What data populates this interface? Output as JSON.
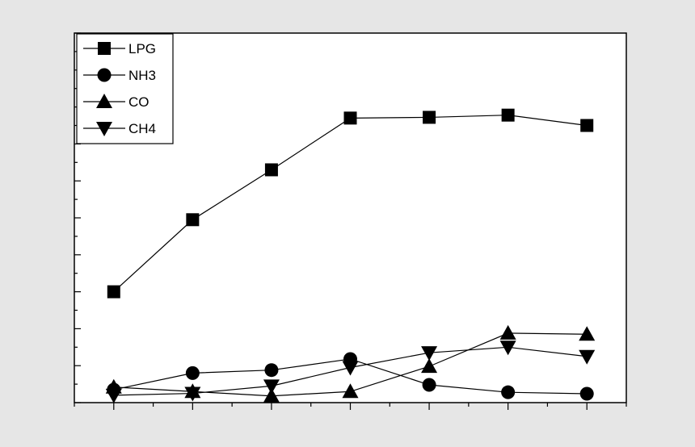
{
  "chart_data": {
    "type": "line",
    "title": "",
    "xlabel": "",
    "ylabel": "",
    "x": [
      1,
      2,
      3,
      4,
      5,
      6,
      7
    ],
    "xlim": [
      0.5,
      7.5
    ],
    "ylim": [
      0,
      10
    ],
    "grid": false,
    "legend_position": "top-left",
    "colors": {
      "background": "#e6e6e6",
      "plot_area": "#ffffff",
      "line": "#000000",
      "marker": "#000000"
    },
    "series": [
      {
        "name": "LPG",
        "marker": "square",
        "values": [
          3.0,
          4.95,
          6.3,
          7.7,
          7.72,
          7.78,
          7.5
        ]
      },
      {
        "name": "NH3",
        "marker": "circle",
        "values": [
          0.35,
          0.8,
          0.88,
          1.18,
          0.48,
          0.28,
          0.24
        ]
      },
      {
        "name": "CO",
        "marker": "triangle-up",
        "values": [
          0.42,
          0.3,
          0.18,
          0.3,
          0.98,
          1.88,
          1.85
        ]
      },
      {
        "name": "CH4",
        "marker": "triangle-down",
        "values": [
          0.2,
          0.25,
          0.45,
          0.95,
          1.35,
          1.5,
          1.25
        ]
      }
    ]
  }
}
